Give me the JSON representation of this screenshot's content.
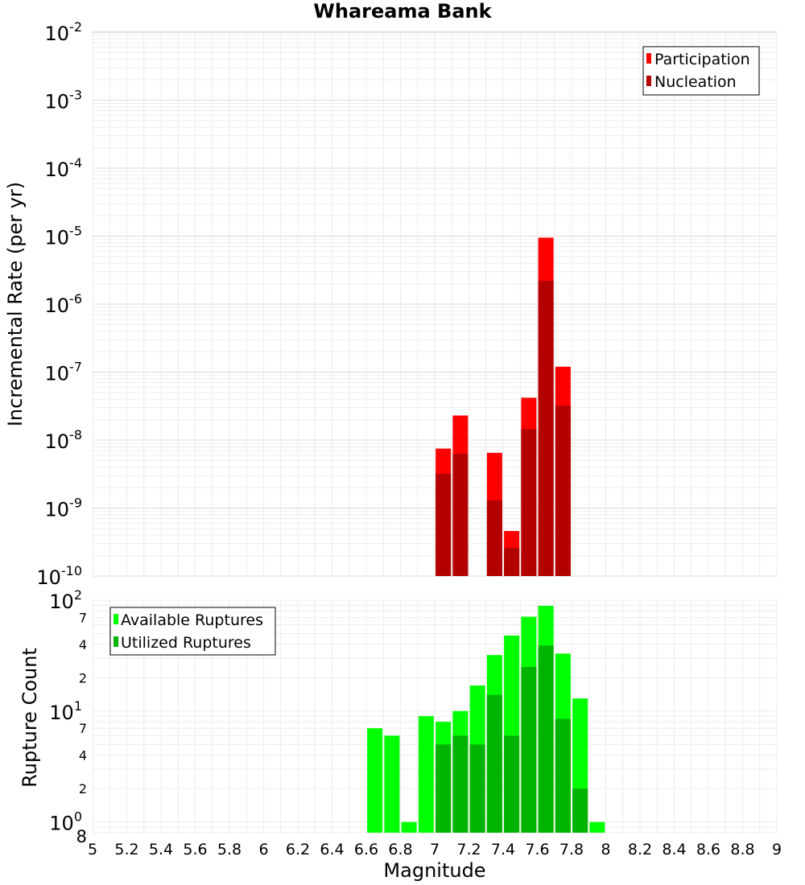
{
  "chart_data": [
    {
      "type": "bar",
      "title": "Whareama Bank",
      "xlabel": "Magnitude",
      "ylabel": "Incremental Rate (per yr)",
      "yscale": "log",
      "ylim": [
        1e-10,
        0.01
      ],
      "xlim": [
        5,
        9
      ],
      "grid": true,
      "legend_position": "top-right",
      "x": [
        7.05,
        7.15,
        7.35,
        7.45,
        7.55,
        7.65,
        7.75
      ],
      "series": [
        {
          "name": "Participation",
          "color": "#ff0000",
          "values": [
            7.5e-09,
            2.3e-08,
            6.5e-09,
            4.6e-10,
            4.2e-08,
            9.5e-06,
            1.2e-07
          ]
        },
        {
          "name": "Nucleation",
          "color": "#b30000",
          "values": [
            3.2e-09,
            6.3e-09,
            1.3e-09,
            2.6e-10,
            1.45e-08,
            2.2e-06,
            3.2e-08
          ]
        }
      ],
      "y_ticks": [
        {
          "base": "10",
          "exp": "-2"
        },
        {
          "base": "10",
          "exp": "-3"
        },
        {
          "base": "10",
          "exp": "-4"
        },
        {
          "base": "10",
          "exp": "-5"
        },
        {
          "base": "10",
          "exp": "-6"
        },
        {
          "base": "10",
          "exp": "-7"
        },
        {
          "base": "10",
          "exp": "-8"
        },
        {
          "base": "10",
          "exp": "-9"
        },
        {
          "base": "10",
          "exp": "-10"
        }
      ]
    },
    {
      "type": "bar",
      "xlabel": "Magnitude",
      "ylabel": "Rupture Count",
      "yscale": "log",
      "ylim": [
        0.8,
        100
      ],
      "xlim": [
        5,
        9
      ],
      "grid": true,
      "legend_position": "top-left",
      "x_ticks": [
        "5",
        "5.2",
        "5.4",
        "5.6",
        "5.8",
        "6",
        "6.2",
        "6.4",
        "6.6",
        "6.8",
        "7",
        "7.2",
        "7.4",
        "7.6",
        "7.8",
        "8",
        "8.2",
        "8.4",
        "8.6",
        "8.8",
        "9"
      ],
      "y_ticks": [
        {
          "base": "10",
          "exp": "2"
        },
        {
          "base": "10",
          "exp": "1"
        },
        {
          "base": "10",
          "exp": "0"
        },
        {
          "minor": "7"
        },
        {
          "minor": "4"
        },
        {
          "minor": "2"
        },
        {
          "minor": "7"
        },
        {
          "minor": "4"
        },
        {
          "minor": "2"
        },
        {
          "minor": "8"
        }
      ],
      "x": [
        6.65,
        6.75,
        6.85,
        6.95,
        7.05,
        7.15,
        7.25,
        7.35,
        7.45,
        7.55,
        7.65,
        7.75,
        7.85,
        7.95
      ],
      "series": [
        {
          "name": "Available Ruptures",
          "color": "#00ff00",
          "values": [
            7,
            6,
            1,
            9,
            8,
            10,
            17,
            32,
            48,
            71,
            89,
            33,
            13,
            1
          ]
        },
        {
          "name": "Utilized Ruptures",
          "color": "#00b300",
          "values": [
            0,
            0,
            0,
            0,
            5,
            6,
            5,
            14,
            6,
            25,
            39,
            8.5,
            2,
            0
          ]
        }
      ]
    }
  ]
}
